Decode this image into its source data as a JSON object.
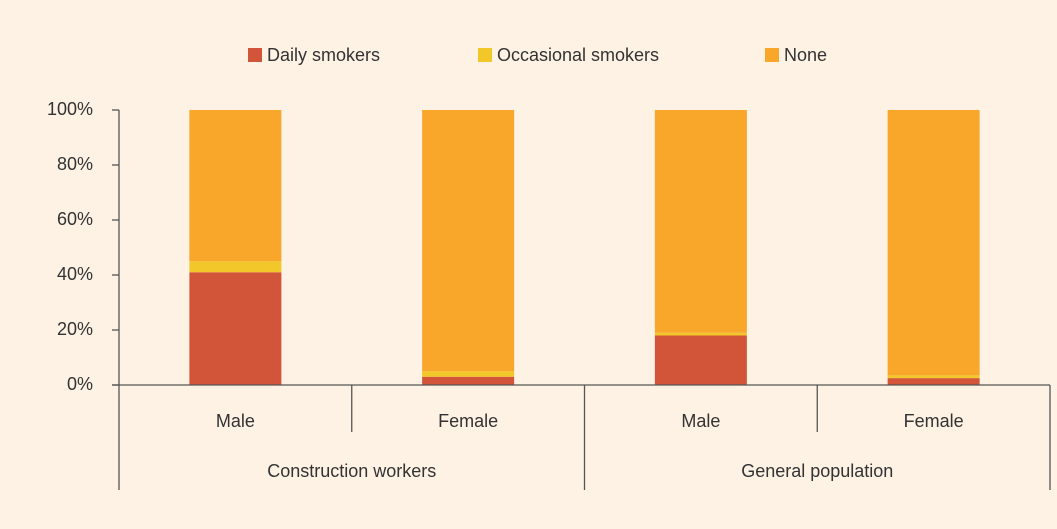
{
  "chart_data": {
    "type": "stacked_bar",
    "groups": [
      {
        "name": "Construction workers",
        "categories": [
          "Male",
          "Female"
        ]
      },
      {
        "name": "General population",
        "categories": [
          "Male",
          "Female"
        ]
      }
    ],
    "series": [
      {
        "name": "Daily smokers",
        "color": "#d2553a",
        "values": [
          41,
          3,
          18,
          2.5
        ]
      },
      {
        "name": "Occasional smokers",
        "color": "#f2c72a",
        "values": [
          4,
          2,
          1,
          1
        ]
      },
      {
        "name": "None",
        "color": "#f8a72a",
        "values": [
          55,
          95,
          81,
          96.5
        ]
      }
    ],
    "ylim": [
      0,
      100
    ],
    "yticks": [
      {
        "value": 0,
        "label": "0%"
      },
      {
        "value": 20,
        "label": "20%"
      },
      {
        "value": 40,
        "label": "40%"
      },
      {
        "value": 60,
        "label": "60%"
      },
      {
        "value": 80,
        "label": "80%"
      },
      {
        "value": 100,
        "label": "100%"
      }
    ],
    "legend": "top"
  }
}
